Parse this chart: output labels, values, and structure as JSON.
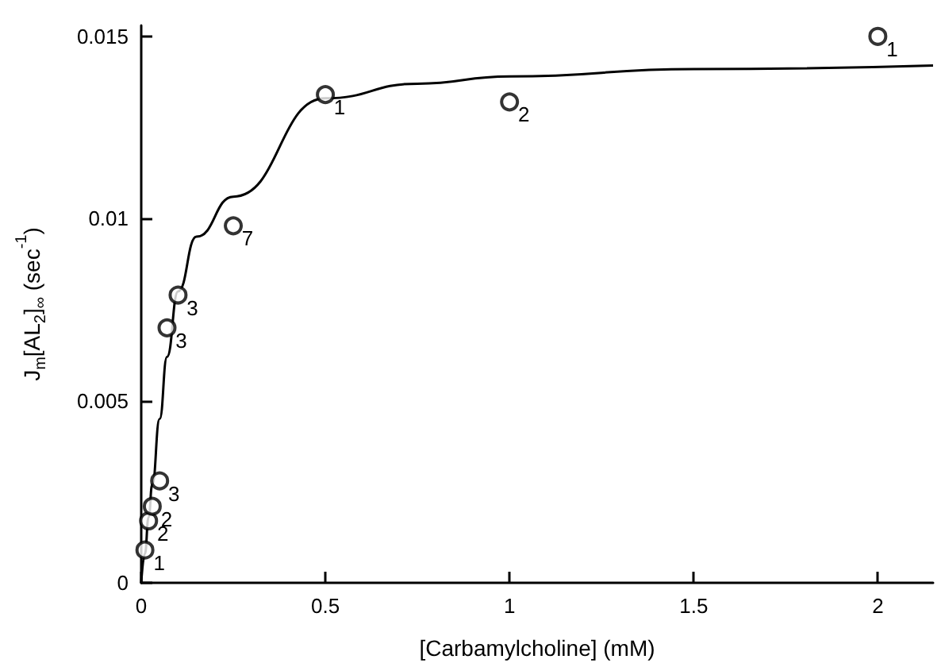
{
  "chart_data": {
    "type": "scatter",
    "xlabel": "[Carbamylcholine] (mM)",
    "ylabel": "J$_{m}$[AL$_{2}$]$_{∞}$ (sec$^{-1}$)",
    "series": [
      {
        "color": "#000000",
        "marker": "circle",
        "x": [
          0.01,
          0.02,
          0.03,
          0.05,
          0.07,
          0.1,
          0.25,
          0.5,
          1,
          2
        ],
        "values": [
          0.0009,
          0.0017,
          0.0021,
          0.0028,
          0.007,
          0.0079,
          0.0098,
          0.0134,
          0.0132,
          0.015
        ]
      },
      {
        "type": "line",
        "color": "#000000",
        "marker": "none",
        "line_style": "solid",
        "x": [
          0,
          0.01,
          0.02,
          0.03,
          0.05,
          0.07,
          0.1,
          0.15,
          0.25,
          0.5,
          0.75,
          1,
          1.5,
          2.15
        ],
        "values": [
          0,
          0.0008,
          0.0018,
          0.0027,
          0.0045,
          0.0062,
          0.008,
          0.0095,
          0.0106,
          0.0133,
          0.0137,
          0.0139,
          0.0141,
          0.0142
        ]
      }
    ],
    "annotations": [
      {
        "text": "1",
        "x": 0.01,
        "y": 0.0009
      },
      {
        "text": "2",
        "x": 0.02,
        "y": 0.0017
      },
      {
        "text": "2",
        "x": 0.03,
        "y": 0.0021
      },
      {
        "text": "3",
        "x": 0.05,
        "y": 0.0028
      },
      {
        "text": "3",
        "x": 0.07,
        "y": 0.007
      },
      {
        "text": "3",
        "x": 0.1,
        "y": 0.0079
      },
      {
        "text": "7",
        "x": 0.25,
        "y": 0.0098
      },
      {
        "text": "1",
        "x": 0.5,
        "y": 0.0134
      },
      {
        "text": "2",
        "x": 1,
        "y": 0.0132
      },
      {
        "text": "1",
        "x": 2,
        "y": 0.015
      }
    ],
    "xlim": [
      0,
      2.15
    ],
    "xticks": [
      0,
      0.5,
      1,
      1.5,
      2
    ],
    "ylim": [
      0,
      0.0153
    ],
    "yticks": [
      0,
      0.005,
      0.01,
      0.015
    ],
    "grid": false
  }
}
